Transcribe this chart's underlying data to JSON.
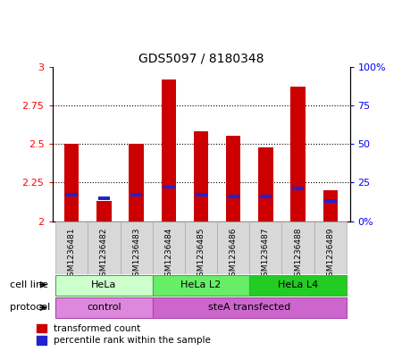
{
  "title": "GDS5097 / 8180348",
  "samples": [
    "GSM1236481",
    "GSM1236482",
    "GSM1236483",
    "GSM1236484",
    "GSM1236485",
    "GSM1236486",
    "GSM1236487",
    "GSM1236488",
    "GSM1236489"
  ],
  "bar_values": [
    2.5,
    2.13,
    2.5,
    2.92,
    2.58,
    2.55,
    2.48,
    2.87,
    2.2
  ],
  "blue_values": [
    2.17,
    2.15,
    2.17,
    2.22,
    2.17,
    2.16,
    2.16,
    2.21,
    2.13
  ],
  "bar_color": "#cc0000",
  "blue_color": "#2222cc",
  "bar_bottom": 2.0,
  "ylim_left": [
    2.0,
    3.0
  ],
  "ylim_right": [
    0,
    100
  ],
  "yticks_left": [
    2.0,
    2.25,
    2.5,
    2.75,
    3.0
  ],
  "yticks_right": [
    0,
    25,
    50,
    75,
    100
  ],
  "ytick_labels_left": [
    "2",
    "2.25",
    "2.5",
    "2.75",
    "3"
  ],
  "ytick_labels_right": [
    "0%",
    "25",
    "50",
    "75",
    "100%"
  ],
  "cell_line_groups": [
    {
      "label": "HeLa",
      "start": 0,
      "end": 3,
      "color": "#ccffcc"
    },
    {
      "label": "HeLa L2",
      "start": 3,
      "end": 6,
      "color": "#66ee66"
    },
    {
      "label": "HeLa L4",
      "start": 6,
      "end": 9,
      "color": "#22cc22"
    }
  ],
  "protocol_groups": [
    {
      "label": "control",
      "start": 0,
      "end": 3,
      "color": "#dd88dd"
    },
    {
      "label": "steA transfected",
      "start": 3,
      "end": 9,
      "color": "#cc66cc"
    }
  ],
  "bar_width": 0.45,
  "blue_bar_width": 0.38,
  "blue_bar_height": 0.022,
  "sample_box_color": "#d8d8d8",
  "sample_box_edge": "#aaaaaa"
}
